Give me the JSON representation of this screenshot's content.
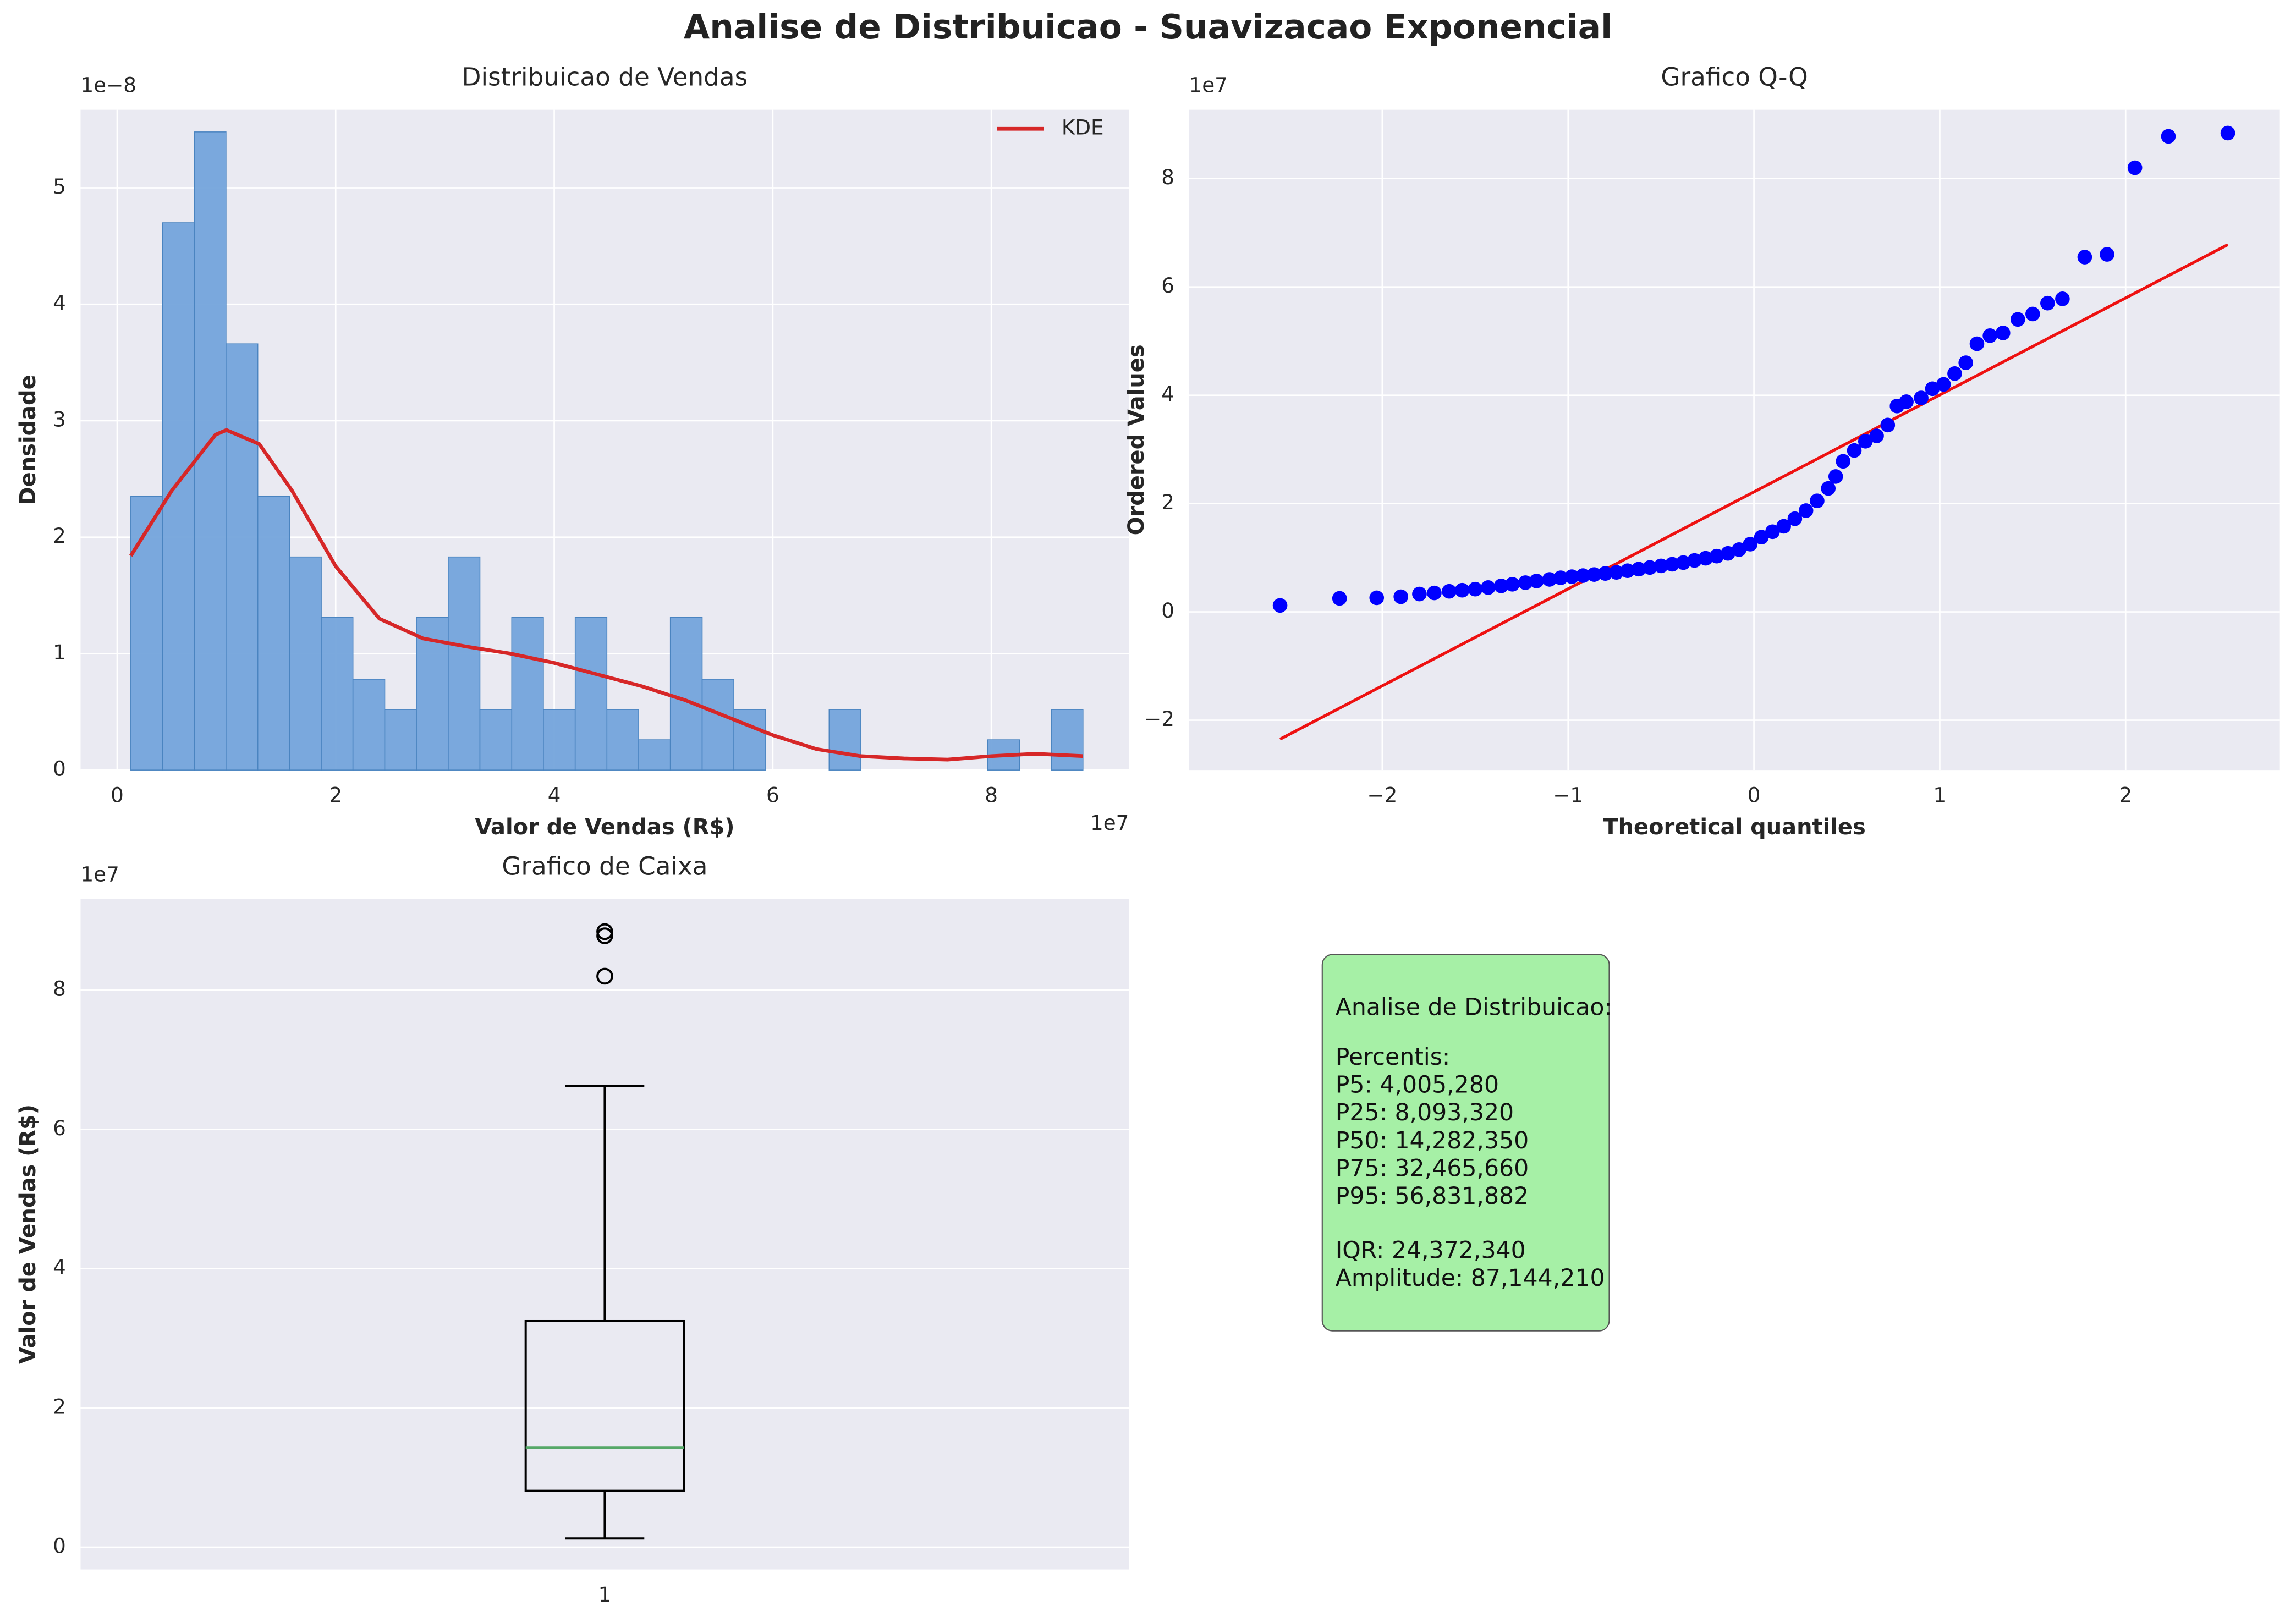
{
  "title": "Analise de Distribuicao - Suavizacao Exponencial",
  "chart_data": [
    {
      "type": "histogram",
      "title": "Distribuicao de Vendas",
      "x_label": "Valor de Vendas (R$)",
      "y_label": "Densidade",
      "x_offset_label": "1e7",
      "y_offset_label": "1e−8",
      "bins": [
        0.125,
        0.415,
        0.706,
        0.996,
        1.287,
        1.577,
        1.868,
        2.158,
        2.449,
        2.739,
        3.03,
        3.32,
        3.611,
        3.901,
        4.192,
        4.482,
        4.773,
        5.063,
        5.354,
        5.644,
        5.935,
        6.225,
        6.516,
        6.806,
        7.096,
        7.387,
        7.677,
        7.968,
        8.258,
        8.549,
        8.839
      ],
      "values": [
        2.35,
        4.7,
        5.48,
        3.66,
        2.35,
        1.83,
        1.31,
        0.78,
        0.52,
        1.31,
        1.83,
        0.52,
        1.31,
        0.52,
        1.31,
        0.52,
        0.26,
        1.31,
        0.78,
        0.52,
        0,
        0,
        0.52,
        0,
        0,
        0,
        0,
        0.26,
        0,
        0.52
      ],
      "color": "#74a4db",
      "xlim": [
        -0.335,
        9.26
      ],
      "ylim": [
        0,
        5.67
      ],
      "xticks": [
        0,
        2,
        4,
        6,
        8
      ],
      "yticks": [
        0,
        1,
        2,
        3,
        4,
        5
      ],
      "grid": true,
      "legend": "upper right",
      "kde": {
        "name": "KDE",
        "color": "#d62728",
        "x": [
          0.125,
          0.5,
          0.9,
          1.0,
          1.3,
          1.6,
          2.0,
          2.4,
          2.8,
          3.2,
          3.6,
          4.0,
          4.4,
          4.8,
          5.2,
          5.6,
          6.0,
          6.4,
          6.8,
          7.2,
          7.6,
          8.0,
          8.4,
          8.839
        ],
        "values": [
          1.84,
          2.4,
          2.88,
          2.92,
          2.8,
          2.4,
          1.75,
          1.3,
          1.13,
          1.06,
          1.0,
          0.92,
          0.82,
          0.72,
          0.6,
          0.45,
          0.3,
          0.18,
          0.12,
          0.1,
          0.09,
          0.12,
          0.14,
          0.12
        ]
      }
    },
    {
      "type": "scatter",
      "title": "Grafico Q-Q",
      "x_label": "Theoretical quantiles",
      "y_label": "Ordered Values",
      "y_offset_label": "1e7",
      "x": [
        -2.55,
        -2.23,
        -2.03,
        -1.9,
        -1.8,
        -1.72,
        -1.64,
        -1.57,
        -1.5,
        -1.43,
        -1.36,
        -1.3,
        -1.23,
        -1.17,
        -1.1,
        -1.04,
        -0.98,
        -0.92,
        -0.86,
        -0.8,
        -0.74,
        -0.68,
        -0.62,
        -0.56,
        -0.5,
        -0.44,
        -0.38,
        -0.32,
        -0.26,
        -0.2,
        -0.14,
        -0.08,
        -0.02,
        0.04,
        0.1,
        0.16,
        0.22,
        0.28,
        0.34,
        0.4,
        0.44,
        0.48,
        0.54,
        0.6,
        0.66,
        0.72,
        0.77,
        0.82,
        0.9,
        0.96,
        1.02,
        1.08,
        1.14,
        1.2,
        1.27,
        1.34,
        1.42,
        1.5,
        1.58,
        1.66,
        1.78,
        1.9,
        2.05,
        2.23,
        2.55
      ],
      "values": [
        0.12,
        0.25,
        0.26,
        0.28,
        0.33,
        0.35,
        0.38,
        0.4,
        0.42,
        0.45,
        0.48,
        0.51,
        0.54,
        0.57,
        0.6,
        0.63,
        0.65,
        0.67,
        0.69,
        0.71,
        0.73,
        0.76,
        0.79,
        0.82,
        0.85,
        0.88,
        0.91,
        0.95,
        0.99,
        1.03,
        1.08,
        1.15,
        1.25,
        1.38,
        1.48,
        1.58,
        1.72,
        1.87,
        2.05,
        2.28,
        2.5,
        2.78,
        2.98,
        3.15,
        3.25,
        3.45,
        3.8,
        3.88,
        3.95,
        4.12,
        4.2,
        4.4,
        4.6,
        4.95,
        5.1,
        5.15,
        5.4,
        5.5,
        5.7,
        5.78,
        6.55,
        6.6,
        8.2,
        8.78,
        8.84
      ],
      "color": "#0000ff",
      "fit": {
        "x": [
          -2.55,
          2.55
        ],
        "values": [
          -2.35,
          6.78
        ],
        "color": "#ee1111"
      },
      "xlim": [
        -3.04,
        2.83
      ],
      "ylim": [
        -2.92,
        9.27
      ],
      "xticks": [
        {
          "value": -2,
          "label": "−2"
        },
        {
          "value": -1,
          "label": "−1"
        },
        0,
        1,
        2
      ],
      "yticks": [
        {
          "value": -2,
          "label": "−2"
        },
        0,
        2,
        4,
        6,
        8
      ],
      "grid": true
    },
    {
      "type": "box",
      "title": "Grafico de Caixa",
      "y_label": "Valor de Vendas (R$)",
      "y_offset_label": "1e7",
      "categories": [
        "1"
      ],
      "whisker_low": 0.125,
      "q1": 0.809,
      "median": 1.428,
      "q3": 3.247,
      "whisker_high": 6.62,
      "outliers": [
        8.2,
        8.78,
        8.84
      ],
      "color": "#000000",
      "median_color": "#55a868",
      "ylim": [
        -0.32,
        9.31
      ],
      "yticks": [
        0,
        2,
        4,
        6,
        8
      ],
      "grid": true
    }
  ],
  "text_box": {
    "heading": "Analise de Distribuicao:",
    "percentiles_title": "Percentis:",
    "percentiles": [
      "P5: 4,005,280",
      "P25: 8,093,320",
      "P50: 14,282,350",
      "P75: 32,465,660",
      "P95: 56,831,882"
    ],
    "iqr": "IQR: 24,372,340",
    "amplitude": "Amplitude: 87,144,210",
    "color": "#a6f0a6"
  }
}
